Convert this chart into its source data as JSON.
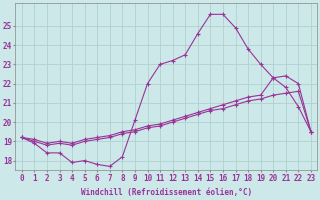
{
  "xlabel": "Windchill (Refroidissement éolien,°C)",
  "bg_color": "#cce8e8",
  "grid_color": "#b0d0d0",
  "line_color": "#993399",
  "x_ticks": [
    0,
    1,
    2,
    3,
    4,
    5,
    6,
    7,
    8,
    9,
    10,
    11,
    12,
    13,
    14,
    15,
    16,
    17,
    18,
    19,
    20,
    21,
    22,
    23
  ],
  "y_ticks": [
    18,
    19,
    20,
    21,
    22,
    23,
    24,
    25
  ],
  "ylim": [
    17.5,
    26.2
  ],
  "xlim": [
    -0.5,
    23.5
  ],
  "series1_y": [
    19.2,
    18.9,
    18.4,
    18.4,
    17.9,
    18.0,
    17.8,
    17.7,
    18.2,
    20.1,
    22.0,
    23.0,
    23.2,
    23.5,
    24.6,
    25.6,
    25.6,
    24.9,
    23.8,
    23.0,
    22.3,
    21.8,
    20.8,
    19.5
  ],
  "series2_y": [
    19.2,
    19.1,
    18.9,
    19.0,
    18.9,
    19.1,
    19.2,
    19.3,
    19.5,
    19.6,
    19.8,
    19.9,
    20.1,
    20.3,
    20.5,
    20.7,
    20.9,
    21.1,
    21.3,
    21.4,
    22.3,
    22.4,
    22.0,
    19.5
  ],
  "series3_y": [
    19.2,
    19.0,
    18.8,
    18.9,
    18.8,
    19.0,
    19.1,
    19.2,
    19.4,
    19.5,
    19.7,
    19.8,
    20.0,
    20.2,
    20.4,
    20.6,
    20.7,
    20.9,
    21.1,
    21.2,
    21.4,
    21.5,
    21.6,
    19.5
  ],
  "tick_fontsize": 5.5,
  "xlabel_fontsize": 5.5
}
